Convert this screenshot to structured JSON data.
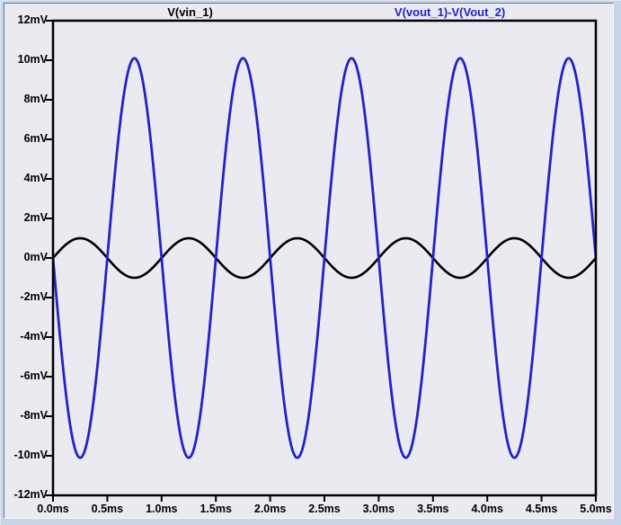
{
  "window": {
    "background": "#c6d5e8",
    "pane_background": "#e9ebf1"
  },
  "header": {
    "traces": [
      {
        "label": "V(vin_1)",
        "color": "#000000"
      },
      {
        "label": "V(vout_1)-V(Vout_2)",
        "color": "#2222cc"
      }
    ]
  },
  "chart_data": {
    "type": "line",
    "title": "",
    "xlabel": "",
    "ylabel": "",
    "grid": false,
    "legend_position": "top",
    "x_axis": {
      "unit": "ms",
      "min": 0,
      "max": 5,
      "tick_step": 0.5,
      "tick_labels": [
        "0.0ms",
        "0.5ms",
        "1.0ms",
        "1.5ms",
        "2.0ms",
        "2.5ms",
        "3.0ms",
        "3.5ms",
        "4.0ms",
        "4.5ms",
        "5.0ms"
      ]
    },
    "y_axis": {
      "unit": "mV",
      "min": -12,
      "max": 12,
      "tick_step": 2,
      "tick_labels": [
        "12mV",
        "10mV",
        "8mV",
        "6mV",
        "4mV",
        "2mV",
        "0mV",
        "-2mV",
        "-4mV",
        "-6mV",
        "-8mV",
        "-10mV",
        "-12mV"
      ]
    },
    "series": [
      {
        "name": "V(vin_1)",
        "color": "#000000",
        "waveform": "sine",
        "amplitude_mV": 1.0,
        "offset_mV": 0,
        "frequency_kHz": 1.0,
        "phase_deg": 0,
        "cycles_shown": 5
      },
      {
        "name": "V(vout_1)-V(Vout_2)",
        "color": "#2222c8",
        "waveform": "sine",
        "amplitude_mV": 10.1,
        "offset_mV": 0,
        "frequency_kHz": 1.0,
        "phase_deg": 180,
        "cycles_shown": 5
      }
    ]
  }
}
